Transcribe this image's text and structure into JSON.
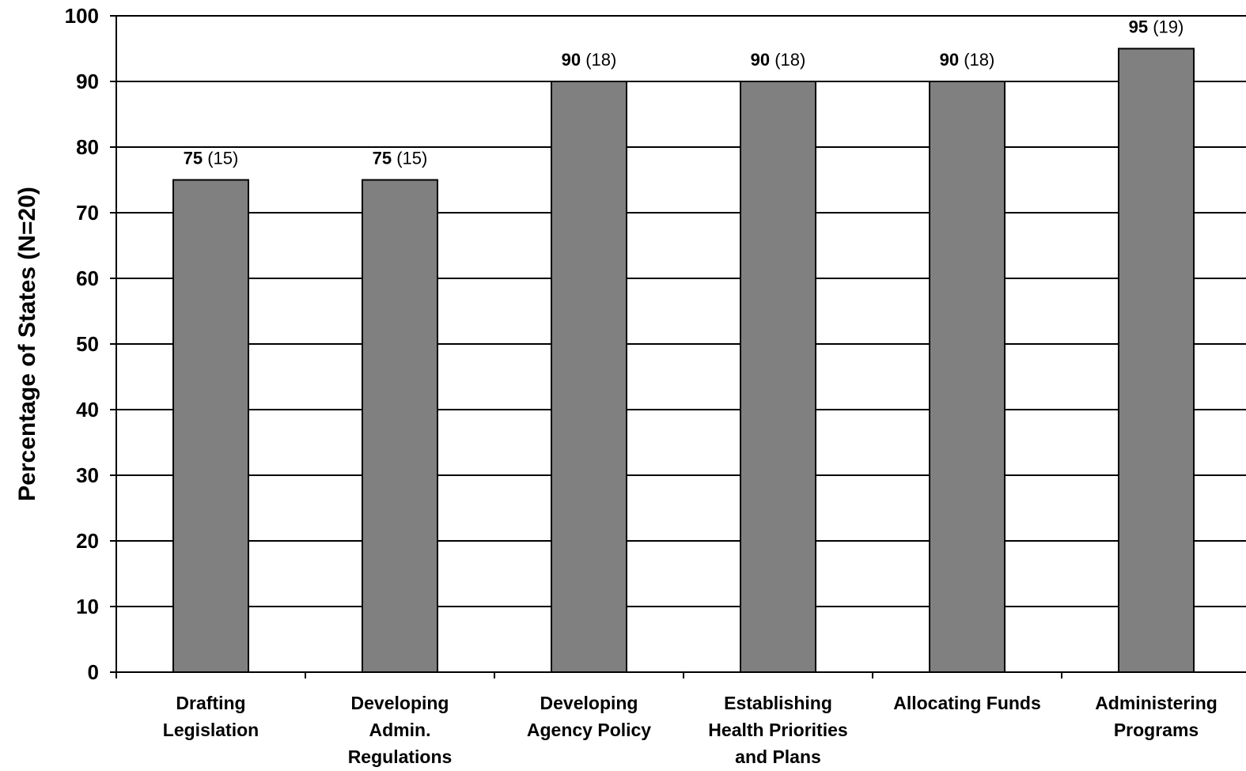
{
  "chart_data": {
    "type": "bar",
    "title": "",
    "xlabel": "",
    "ylabel": "Percentage of States (N=20)",
    "ylim": [
      0,
      100
    ],
    "y_ticks": [
      0,
      10,
      20,
      30,
      40,
      50,
      60,
      70,
      80,
      90,
      100
    ],
    "grid": true,
    "categories": [
      [
        "Drafting",
        "Legislation"
      ],
      [
        "Developing",
        "Admin.",
        "Regulations"
      ],
      [
        "Developing",
        "Agency Policy"
      ],
      [
        "Establishing",
        "Health Priorities",
        "and Plans"
      ],
      [
        "Allocating Funds"
      ],
      [
        "Administering",
        "Programs"
      ]
    ],
    "values": [
      75,
      75,
      90,
      90,
      90,
      95
    ],
    "counts": [
      "(15)",
      "(15)",
      "(18)",
      "(18)",
      "(18)",
      "(19)"
    ],
    "bar_color": "#808080"
  }
}
